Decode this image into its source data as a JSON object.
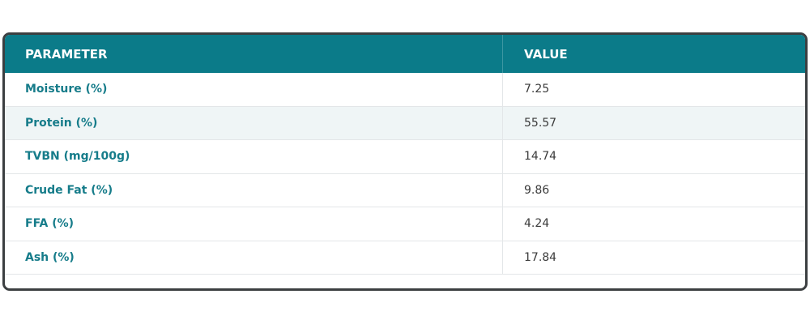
{
  "table": {
    "header": [
      "PARAMETER",
      "VALUE"
    ],
    "rows": [
      [
        "Moisture (%)",
        "7.25"
      ],
      [
        "Protein (%)",
        "55.57"
      ],
      [
        "TVBN (mg/100g)",
        "14.74"
      ],
      [
        "Crude Fat (%)",
        "9.86"
      ],
      [
        "FFA (%)",
        "4.24"
      ],
      [
        "Ash (%)",
        "17.84"
      ]
    ]
  }
}
